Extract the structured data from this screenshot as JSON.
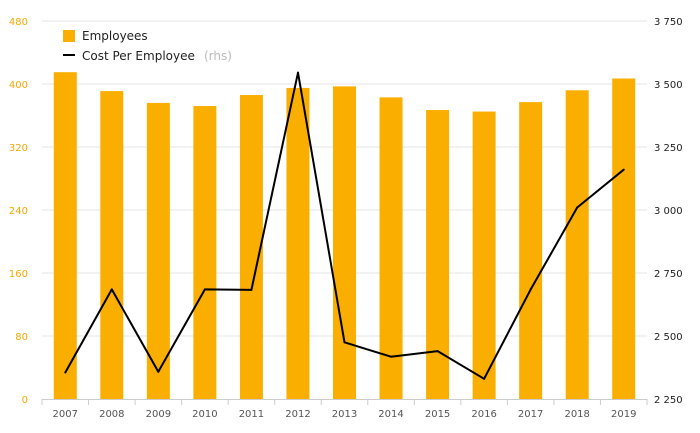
{
  "chart_data": {
    "type": "bar",
    "categories": [
      "2007",
      "2008",
      "2009",
      "2010",
      "2011",
      "2012",
      "2013",
      "2014",
      "2015",
      "2016",
      "2017",
      "2018",
      "2019"
    ],
    "series": [
      {
        "name": "Employees",
        "type": "bar",
        "axis": "left",
        "color": "#f9ae00",
        "values": [
          415,
          391,
          376,
          372,
          386,
          395,
          397,
          383,
          367,
          365,
          377,
          392,
          407
        ]
      },
      {
        "name": "Cost Per Employee",
        "type": "line",
        "axis": "right",
        "axis_note": "(rhs)",
        "color": "#000000",
        "values": [
          2355,
          2685,
          2358,
          2685,
          2683,
          3545,
          2475,
          2418,
          2440,
          2330,
          2685,
          3010,
          3160
        ]
      }
    ],
    "y_left": {
      "ylim": [
        0,
        480
      ],
      "ticks": [
        "0",
        "80",
        "160",
        "240",
        "320",
        "400",
        "480"
      ]
    },
    "y_right": {
      "ylim": [
        2250,
        3750
      ],
      "ticks": [
        "2 250",
        "2 500",
        "2 750",
        "3 000",
        "3 250",
        "3 500",
        "3 750"
      ]
    },
    "grid": true,
    "legend_position": "top-left"
  }
}
